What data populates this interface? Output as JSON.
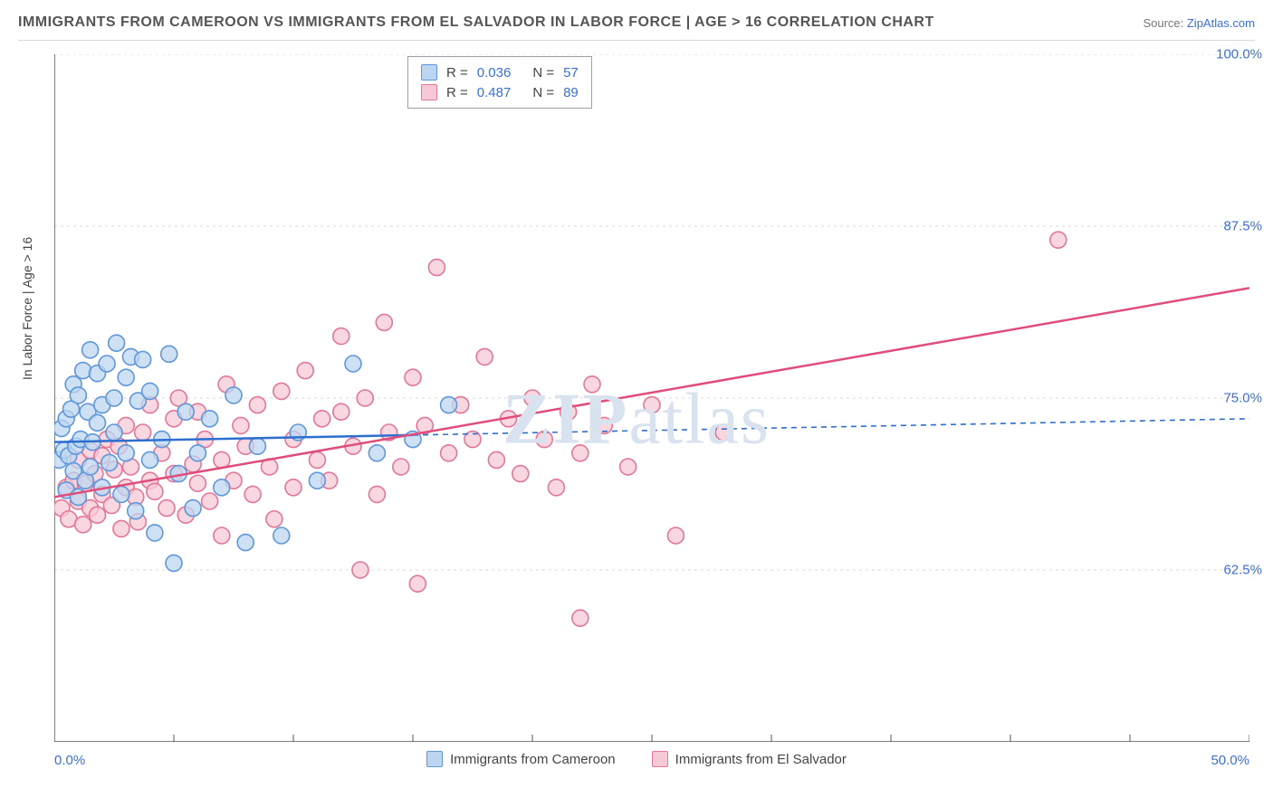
{
  "title": "IMMIGRANTS FROM CAMEROON VS IMMIGRANTS FROM EL SALVADOR IN LABOR FORCE | AGE > 16 CORRELATION CHART",
  "source_prefix": "Source: ",
  "source_name": "ZipAtlas.com",
  "y_axis_label": "In Labor Force | Age > 16",
  "watermark": {
    "strong": "ZIP",
    "rest": "atlas"
  },
  "chart": {
    "type": "scatter",
    "xlim": [
      0,
      50
    ],
    "ylim": [
      50,
      100
    ],
    "x_ticks": [
      0,
      5,
      10,
      15,
      20,
      25,
      30,
      35,
      40,
      45,
      50
    ],
    "x_tick_labels_shown": {
      "0": "0.0%",
      "50": "50.0%"
    },
    "y_ticks": [
      62.5,
      75.0,
      87.5,
      100.0
    ],
    "y_tick_labels": [
      "62.5%",
      "75.0%",
      "87.5%",
      "100.0%"
    ],
    "grid_color": "#d8d8d8",
    "axis_color": "#555555",
    "background_color": "#ffffff",
    "marker_radius": 9,
    "marker_stroke_width": 1.6,
    "trend_line_width": 2.5,
    "series": [
      {
        "name": "Immigrants from Cameroon",
        "fill_color": "#bcd5f0",
        "stroke_color": "#5f97db",
        "trend_color": "#2d6fd0",
        "trend_dash_after_x": 15,
        "R": 0.036,
        "N": 57,
        "trend": {
          "x1": 0,
          "y1": 71.8,
          "x2": 50,
          "y2": 73.5
        },
        "points": [
          [
            0.2,
            70.5
          ],
          [
            0.3,
            72.8
          ],
          [
            0.4,
            71.2
          ],
          [
            0.5,
            68.3
          ],
          [
            0.5,
            73.5
          ],
          [
            0.6,
            70.8
          ],
          [
            0.7,
            74.2
          ],
          [
            0.8,
            69.7
          ],
          [
            0.8,
            76.0
          ],
          [
            0.9,
            71.5
          ],
          [
            1.0,
            67.8
          ],
          [
            1.0,
            75.2
          ],
          [
            1.1,
            72.0
          ],
          [
            1.2,
            77.0
          ],
          [
            1.3,
            69.0
          ],
          [
            1.4,
            74.0
          ],
          [
            1.5,
            70.0
          ],
          [
            1.5,
            78.5
          ],
          [
            1.6,
            71.8
          ],
          [
            1.8,
            73.2
          ],
          [
            1.8,
            76.8
          ],
          [
            2.0,
            68.5
          ],
          [
            2.0,
            74.5
          ],
          [
            2.2,
            77.5
          ],
          [
            2.3,
            70.3
          ],
          [
            2.5,
            75.0
          ],
          [
            2.5,
            72.5
          ],
          [
            2.6,
            79.0
          ],
          [
            2.8,
            68.0
          ],
          [
            3.0,
            76.5
          ],
          [
            3.0,
            71.0
          ],
          [
            3.2,
            78.0
          ],
          [
            3.4,
            66.8
          ],
          [
            3.5,
            74.8
          ],
          [
            3.7,
            77.8
          ],
          [
            4.0,
            70.5
          ],
          [
            4.0,
            75.5
          ],
          [
            4.2,
            65.2
          ],
          [
            4.5,
            72.0
          ],
          [
            4.8,
            78.2
          ],
          [
            5.0,
            63.0
          ],
          [
            5.2,
            69.5
          ],
          [
            5.5,
            74.0
          ],
          [
            5.8,
            67.0
          ],
          [
            6.0,
            71.0
          ],
          [
            6.5,
            73.5
          ],
          [
            7.0,
            68.5
          ],
          [
            7.5,
            75.2
          ],
          [
            8.0,
            64.5
          ],
          [
            8.5,
            71.5
          ],
          [
            9.5,
            65.0
          ],
          [
            10.2,
            72.5
          ],
          [
            11.0,
            69.0
          ],
          [
            12.5,
            77.5
          ],
          [
            13.5,
            71.0
          ],
          [
            15.0,
            72.0
          ],
          [
            16.5,
            74.5
          ]
        ]
      },
      {
        "name": "Immigrants from El Salvador",
        "fill_color": "#f7c9d6",
        "stroke_color": "#e27798",
        "trend_color": "#e04d7a",
        "trend_dash_after_x": null,
        "R": 0.487,
        "N": 89,
        "trend": {
          "x1": 0,
          "y1": 67.8,
          "x2": 50,
          "y2": 83.0
        },
        "points": [
          [
            0.3,
            67.0
          ],
          [
            0.5,
            68.5
          ],
          [
            0.6,
            66.2
          ],
          [
            0.8,
            69.0
          ],
          [
            1.0,
            67.5
          ],
          [
            1.0,
            70.5
          ],
          [
            1.2,
            65.8
          ],
          [
            1.3,
            68.8
          ],
          [
            1.5,
            67.0
          ],
          [
            1.5,
            71.2
          ],
          [
            1.7,
            69.5
          ],
          [
            1.8,
            66.5
          ],
          [
            2.0,
            70.8
          ],
          [
            2.0,
            68.0
          ],
          [
            2.2,
            72.0
          ],
          [
            2.4,
            67.2
          ],
          [
            2.5,
            69.8
          ],
          [
            2.7,
            71.5
          ],
          [
            2.8,
            65.5
          ],
          [
            3.0,
            68.5
          ],
          [
            3.0,
            73.0
          ],
          [
            3.2,
            70.0
          ],
          [
            3.4,
            67.8
          ],
          [
            3.5,
            66.0
          ],
          [
            3.7,
            72.5
          ],
          [
            4.0,
            69.0
          ],
          [
            4.0,
            74.5
          ],
          [
            4.2,
            68.2
          ],
          [
            4.5,
            71.0
          ],
          [
            4.7,
            67.0
          ],
          [
            5.0,
            73.5
          ],
          [
            5.0,
            69.5
          ],
          [
            5.2,
            75.0
          ],
          [
            5.5,
            66.5
          ],
          [
            5.8,
            70.2
          ],
          [
            6.0,
            68.8
          ],
          [
            6.0,
            74.0
          ],
          [
            6.3,
            72.0
          ],
          [
            6.5,
            67.5
          ],
          [
            7.0,
            70.5
          ],
          [
            7.0,
            65.0
          ],
          [
            7.2,
            76.0
          ],
          [
            7.5,
            69.0
          ],
          [
            7.8,
            73.0
          ],
          [
            8.0,
            71.5
          ],
          [
            8.3,
            68.0
          ],
          [
            8.5,
            74.5
          ],
          [
            9.0,
            70.0
          ],
          [
            9.2,
            66.2
          ],
          [
            9.5,
            75.5
          ],
          [
            10.0,
            72.0
          ],
          [
            10.0,
            68.5
          ],
          [
            10.5,
            77.0
          ],
          [
            11.0,
            70.5
          ],
          [
            11.2,
            73.5
          ],
          [
            11.5,
            69.0
          ],
          [
            12.0,
            74.0
          ],
          [
            12.0,
            79.5
          ],
          [
            12.5,
            71.5
          ],
          [
            12.8,
            62.5
          ],
          [
            13.0,
            75.0
          ],
          [
            13.5,
            68.0
          ],
          [
            13.8,
            80.5
          ],
          [
            14.0,
            72.5
          ],
          [
            14.5,
            70.0
          ],
          [
            15.0,
            76.5
          ],
          [
            15.2,
            61.5
          ],
          [
            15.5,
            73.0
          ],
          [
            16.0,
            84.5
          ],
          [
            16.5,
            71.0
          ],
          [
            17.0,
            74.5
          ],
          [
            17.5,
            72.0
          ],
          [
            18.0,
            78.0
          ],
          [
            18.5,
            70.5
          ],
          [
            19.0,
            73.5
          ],
          [
            19.5,
            69.5
          ],
          [
            20.0,
            75.0
          ],
          [
            20.5,
            72.0
          ],
          [
            21.0,
            68.5
          ],
          [
            21.5,
            74.0
          ],
          [
            22.0,
            71.0
          ],
          [
            22.0,
            59.0
          ],
          [
            22.5,
            76.0
          ],
          [
            23.0,
            73.0
          ],
          [
            24.0,
            70.0
          ],
          [
            25.0,
            74.5
          ],
          [
            26.0,
            65.0
          ],
          [
            28.0,
            72.5
          ],
          [
            42.0,
            86.5
          ]
        ]
      }
    ]
  },
  "legend": {
    "items": [
      {
        "label": "Immigrants from Cameroon",
        "fill": "#bcd5f0",
        "stroke": "#5f97db"
      },
      {
        "label": "Immigrants from El Salvador",
        "fill": "#f7c9d6",
        "stroke": "#e27798"
      }
    ]
  }
}
